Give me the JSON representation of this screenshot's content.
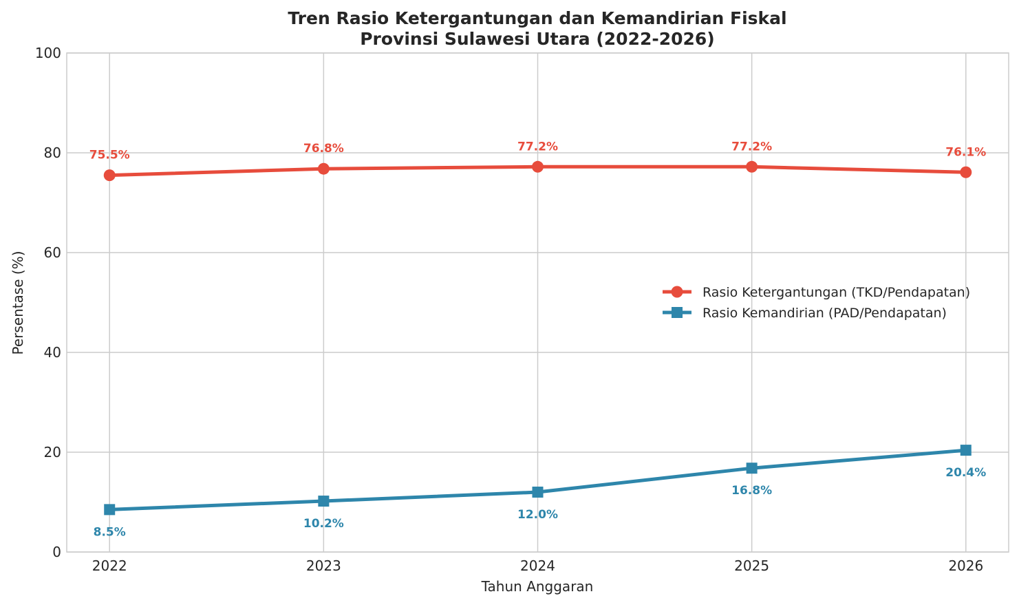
{
  "chart_data": {
    "type": "line",
    "title": "Tren Rasio Ketergantungan dan Kemandirian Fiskal\nProvinsi Sulawesi Utara (2022-2026)",
    "title_lines": [
      "Tren Rasio Ketergantungan dan Kemandirian Fiskal",
      "Provinsi Sulawesi Utara (2022-2026)"
    ],
    "xlabel": "Tahun Anggaran",
    "ylabel": "Persentase (%)",
    "x": [
      2022,
      2023,
      2024,
      2025,
      2026
    ],
    "x_tick_labels": [
      "2022",
      "2023",
      "2024",
      "2025",
      "2026"
    ],
    "ylim": [
      0,
      100
    ],
    "xlim": [
      2021.8,
      2026.2
    ],
    "y_ticks": [
      0,
      20,
      40,
      60,
      80,
      100
    ],
    "y_tick_labels": [
      "0",
      "20",
      "40",
      "60",
      "80",
      "100"
    ],
    "grid": true,
    "legend_position": "center-right",
    "series": [
      {
        "name": "Rasio Ketergantungan (TKD/Pendapatan)",
        "values": [
          75.5,
          76.8,
          77.2,
          77.2,
          76.1
        ],
        "data_labels": [
          "75.5%",
          "76.8%",
          "77.2%",
          "77.2%",
          "76.1%"
        ],
        "color": "#e74c3c",
        "marker": "circle",
        "label_position": "above"
      },
      {
        "name": "Rasio Kemandirian (PAD/Pendapatan)",
        "values": [
          8.5,
          10.2,
          12.0,
          16.8,
          20.4
        ],
        "data_labels": [
          "8.5%",
          "10.2%",
          "12.0%",
          "16.8%",
          "20.4%"
        ],
        "color": "#2e86ab",
        "marker": "square",
        "label_position": "below"
      }
    ]
  }
}
